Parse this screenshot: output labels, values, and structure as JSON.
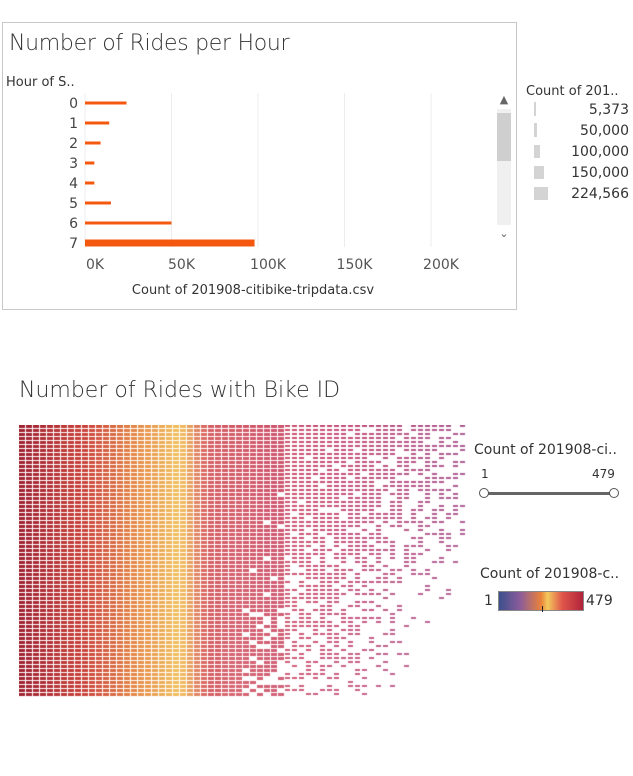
{
  "hour_chart": {
    "title": "Number of Rides per Hour",
    "row_header": "Hour of S..",
    "xlabel": "Count of 201908-citibike-tripdata.csv",
    "size_legend_title": "Count of 201..",
    "size_legend_values": [
      "5,373",
      "50,000",
      "100,000",
      "150,000",
      "224,566"
    ]
  },
  "bike_chart": {
    "title": "Number of Rides with Bike ID",
    "range_legend_title": "Count of 201908-ci..",
    "range_min": "1",
    "range_max": "479",
    "color_legend_title": "Count of 201908-c..",
    "color_min": "1",
    "color_max": "479"
  },
  "chart_data": [
    {
      "type": "bar",
      "orientation": "horizontal",
      "title": "Number of Rides per Hour",
      "categories": [
        "0",
        "1",
        "2",
        "3",
        "4",
        "5",
        "6",
        "7"
      ],
      "values": [
        24000,
        14000,
        9000,
        5400,
        5400,
        15000,
        50000,
        98000
      ],
      "xlabel": "Count of 201908-citibike-tripdata.csv",
      "ylabel": "Hour of S..",
      "xlim": [
        0,
        230000
      ],
      "xticks": [
        "0K",
        "50K",
        "100K",
        "150K",
        "200K"
      ],
      "bar_color": "#f4580f",
      "grid": true
    },
    {
      "type": "heatmap",
      "title": "Number of Rides with Bike ID",
      "value_range": [
        1,
        479
      ],
      "colors": [
        "#3c4f8c",
        "#8a5c9a",
        "#e9823a",
        "#f3c85b",
        "#e0564b",
        "#b0233b"
      ]
    }
  ]
}
